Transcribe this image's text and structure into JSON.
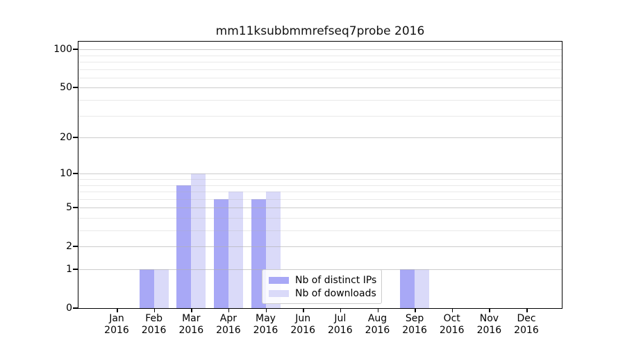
{
  "chart_data": {
    "type": "bar",
    "title": "mm11ksubbmmrefseq7probe 2016",
    "categories": [
      "Jan",
      "Feb",
      "Mar",
      "Apr",
      "May",
      "Jun",
      "Jul",
      "Aug",
      "Sep",
      "Oct",
      "Nov",
      "Dec"
    ],
    "category_year": "2016",
    "series": [
      {
        "name": "Nb of distinct IPs",
        "color": "#a8a8f6",
        "values": [
          0,
          1,
          8,
          6,
          6,
          0,
          0,
          0,
          1,
          0,
          0,
          0
        ]
      },
      {
        "name": "Nb of downloads",
        "color": "#dadaf9",
        "values": [
          0,
          1,
          10,
          7,
          7,
          0,
          0,
          0,
          1,
          0,
          0,
          0
        ]
      }
    ],
    "yscale": "log1p",
    "ylim": [
      0,
      115
    ],
    "y_major_ticks": [
      0,
      1,
      2,
      5,
      10,
      20,
      50,
      100
    ],
    "y_minor_ticks": [
      3,
      4,
      6,
      7,
      8,
      9,
      30,
      40,
      60,
      70,
      80,
      90
    ],
    "grid": "horizontal",
    "legend_position": "inside-lower-center",
    "axis_color": "#000000",
    "grid_color": "#b0b0b0",
    "text_color": "#000000",
    "background_color": "#ffffff"
  }
}
